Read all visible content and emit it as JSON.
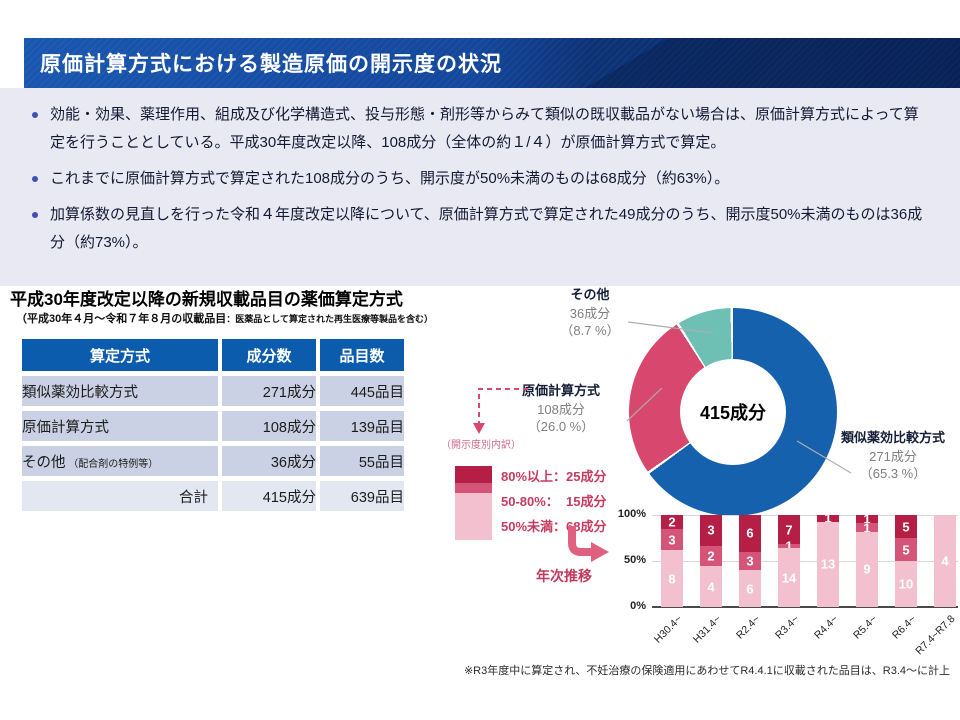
{
  "header": {
    "title": "原価計算方式における製造原価の開示度の状況"
  },
  "bullets": [
    "効能・効果、薬理作用、組成及び化学構造式、投与形態・剤形等からみて類似の既収載品がない場合は、原価計算方式によって算定を行うこととしている。平成30年度改定以降、108成分（全体の約１/４）が原価計算方式で算定。",
    "これまでに原価計算方式で算定された108成分のうち、開示度が50%未満のものは68成分（約63%）。",
    "加算係数の見直しを行った令和４年度改定以降について、原価計算方式で算定された49成分のうち、開示度50%未満のものは36成分（約73%）。"
  ],
  "table_section": {
    "title": "平成30年度改定以降の新規収載品目の薬価算定方式",
    "subtitle_main": "（平成30年４月～令和７年８月の収載品目",
    "subtitle_note": "：医薬品として算定された再生医療等製品を含む）",
    "columns": [
      "算定方式",
      "成分数",
      "品目数"
    ],
    "rows": [
      {
        "method": "類似薬効比較方式",
        "method_note": "",
        "components": "271成分",
        "items": "445品目",
        "total": false
      },
      {
        "method": "原価計算方式",
        "method_note": "",
        "components": "108成分",
        "items": "139品目",
        "total": false
      },
      {
        "method": "その他",
        "method_note": "（配合剤の特例等）",
        "components": "36成分",
        "items": "55品目",
        "total": false
      },
      {
        "method": "合計",
        "method_note": "",
        "components": "415成分",
        "items": "639品目",
        "total": true
      }
    ]
  },
  "chart_data": [
    {
      "type": "pie",
      "title": "平成30年度改定以降の新規収載品目の薬価算定方式",
      "center_label": "415成分",
      "slices": [
        {
          "label": "類似薬効比較方式",
          "value": 271,
          "pct": 65.3,
          "value_label": "271成分",
          "pct_label": "（65.3 %）",
          "color": "#1561ae"
        },
        {
          "label": "原価計算方式",
          "value": 108,
          "pct": 26.0,
          "value_label": "108成分",
          "pct_label": "（26.0 %）",
          "color": "#d8486e"
        },
        {
          "label": "その他",
          "value": 36,
          "pct": 8.7,
          "value_label": "36成分",
          "pct_label": "（8.7 %）",
          "color": "#6fc0b4"
        }
      ],
      "legend_note": "（開示度別内訳）",
      "breakdown": [
        {
          "label": "80%以上：25成分",
          "value": 25,
          "color": "#b51e45"
        },
        {
          "label": "50-80%：  15成分",
          "value": 15,
          "color": "#d45578"
        },
        {
          "label": "50%未満：68成分",
          "value": 68,
          "color": "#f2c0ce"
        }
      ],
      "arrow_label": "年次推移"
    },
    {
      "type": "bar",
      "stacked": "percent",
      "categories": [
        "H30.4~",
        "H31.4~",
        "R2.4~",
        "R3.4~",
        "R4.4~",
        "R5.4~",
        "R6.4~",
        "R7.4~R7.8"
      ],
      "series": [
        {
          "name": "50%未満",
          "color": "#f2c0ce",
          "values": [
            8,
            4,
            6,
            14,
            13,
            9,
            10,
            4
          ]
        },
        {
          "name": "50-80%",
          "color": "#d45578",
          "values": [
            3,
            2,
            3,
            1,
            0,
            1,
            5,
            0
          ]
        },
        {
          "name": "80%以上",
          "color": "#b51e45",
          "values": [
            2,
            3,
            6,
            7,
            1,
            1,
            5,
            0
          ]
        }
      ],
      "y_ticks": [
        "100%",
        "50%",
        "0%"
      ],
      "ylim": [
        0,
        100
      ],
      "grid": true,
      "footnote": "※R3年度中に算定され、不妊治療の保険適用にあわせてR4.4.1に収載された品目は、R3.4～に計上"
    }
  ]
}
